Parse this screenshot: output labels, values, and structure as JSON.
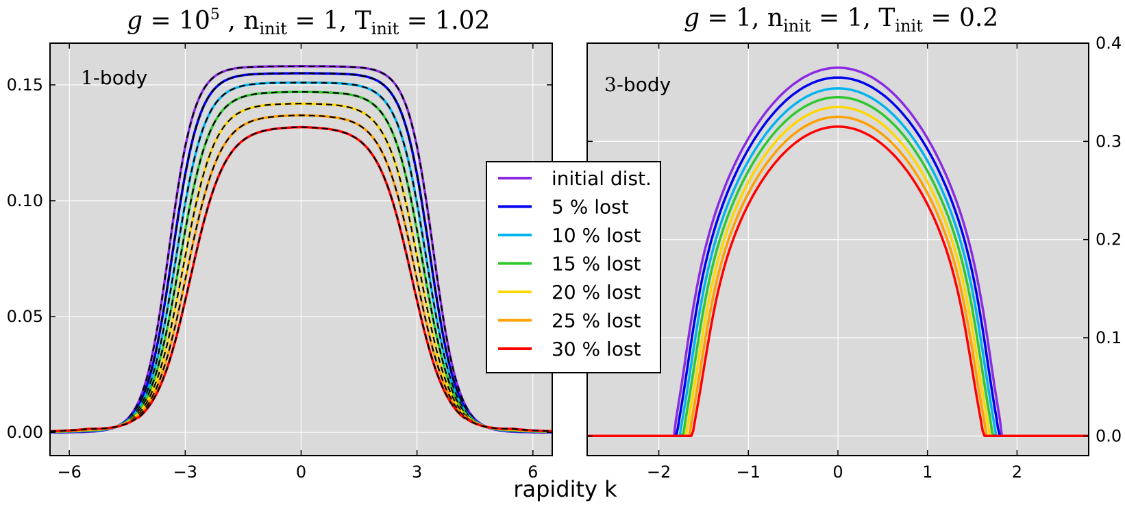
{
  "chart_data": [
    {
      "type": "line",
      "title": {
        "g": "10",
        "g_exp": "5",
        "n_init": "1",
        "T_init": "1.02"
      },
      "annotation": {
        "num": "1",
        "text": "-body"
      },
      "xlabel": "rapidity k",
      "xlim": [
        -6.5,
        6.5
      ],
      "ylim": [
        -0.01,
        0.168
      ],
      "xticks": [
        -6,
        -3,
        0,
        3,
        6
      ],
      "xtick_labels": [
        "−6",
        "−3",
        "0",
        "3",
        "6"
      ],
      "yticks": [
        0.0,
        0.05,
        0.1,
        0.15
      ],
      "ytick_labels": [
        "0.00",
        "0.05",
        "0.10",
        "0.15"
      ],
      "y_axis_side": "left",
      "grid": true,
      "overlay": "black dashed lines on each curve",
      "series": [
        {
          "name": "initial dist.",
          "color": "#8a2be2",
          "peak": 0.158
        },
        {
          "name": "5 % lost",
          "color": "#0000ee",
          "peak": 0.155
        },
        {
          "name": "10 % lost",
          "color": "#00b4ee",
          "peak": 0.151
        },
        {
          "name": "15 % lost",
          "color": "#2ec82e",
          "peak": 0.147
        },
        {
          "name": "20 % lost",
          "color": "#ffd700",
          "peak": 0.142
        },
        {
          "name": "25 % lost",
          "color": "#ff9f00",
          "peak": 0.137
        },
        {
          "name": "30 % lost",
          "color": "#ff0000",
          "peak": 0.132
        }
      ]
    },
    {
      "type": "line",
      "title": {
        "g": "1",
        "n_init": "1",
        "T_init": "0.2"
      },
      "annotation": {
        "num": "3",
        "text": "-body"
      },
      "xlim": [
        -2.8,
        2.8
      ],
      "ylim": [
        -0.02,
        0.4
      ],
      "xticks": [
        -2,
        -1,
        0,
        1,
        2
      ],
      "xtick_labels": [
        "−2",
        "−1",
        "0",
        "1",
        "2"
      ],
      "yticks": [
        0.0,
        0.1,
        0.2,
        0.3,
        0.4
      ],
      "ytick_labels": [
        "0.0",
        "0.1",
        "0.2",
        "0.3",
        "0.4"
      ],
      "y_axis_side": "right",
      "grid": true,
      "series": [
        {
          "name": "initial dist.",
          "color": "#8a2be2",
          "peak": 0.375
        },
        {
          "name": "5 % lost",
          "color": "#0000ee",
          "peak": 0.365
        },
        {
          "name": "10 % lost",
          "color": "#00b4ee",
          "peak": 0.354
        },
        {
          "name": "15 % lost",
          "color": "#2ec82e",
          "peak": 0.345
        },
        {
          "name": "20 % lost",
          "color": "#ffd700",
          "peak": 0.335
        },
        {
          "name": "25 % lost",
          "color": "#ff9f00",
          "peak": 0.325
        },
        {
          "name": "30 % lost",
          "color": "#ff0000",
          "peak": 0.315
        }
      ]
    }
  ],
  "legend": {
    "placement": "center, between panels",
    "entries": [
      "initial dist.",
      "5 % lost",
      "10 % lost",
      "15 % lost",
      "20 % lost",
      "25 % lost",
      "30 % lost"
    ]
  }
}
